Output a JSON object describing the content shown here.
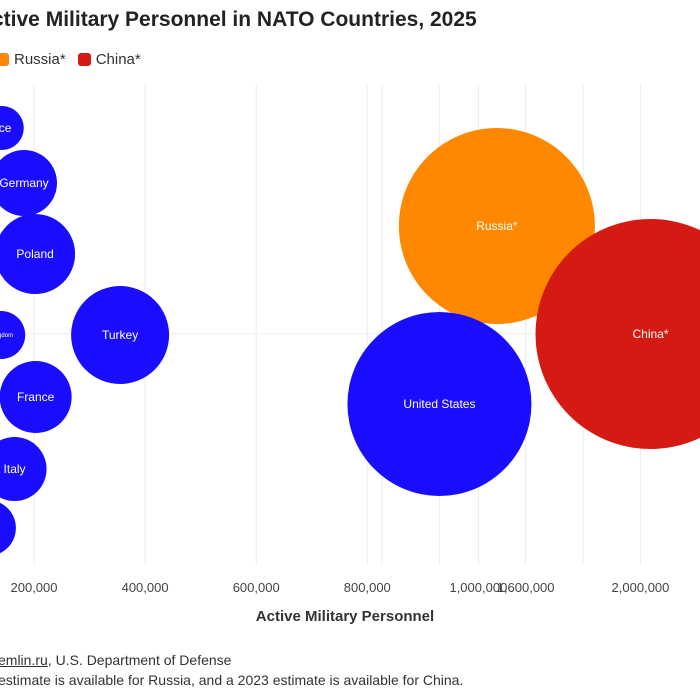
{
  "title": "ctive Military Personnel in NATO Countries, 2025",
  "legend": [
    {
      "label": "Russia*",
      "color": "#ff8800"
    },
    {
      "label": "China*",
      "color": "#d41a12"
    }
  ],
  "notes": {
    "source_prefix": "emlin.ru",
    "source_rest": ", U.S. Department of Defense",
    "footnote": "estimate is available for Russia, and a 2023 estimate is available for China."
  },
  "chart_data": {
    "type": "scatter",
    "title": "ctive Military Personnel in NATO Countries, 2025",
    "xlabel": "Active Military Personnel",
    "ylabel": "",
    "x_ticks": [
      "200,000",
      "400,000",
      "600,000",
      "800,000",
      "1,000,000",
      "1,600,000",
      "2,000,000"
    ],
    "grid": true,
    "colors": {
      "nato": "#1a0dff",
      "russia": "#ff8800",
      "china": "#d41a12"
    },
    "points": [
      {
        "label": "ece",
        "x": 142000,
        "group": "nato"
      },
      {
        "label": "Germany",
        "x": 182000,
        "group": "nato"
      },
      {
        "label": "",
        "x": 100000,
        "group": "nato"
      },
      {
        "label": "Poland",
        "x": 202000,
        "group": "nato"
      },
      {
        "label": "",
        "x": 60000,
        "group": "nato"
      },
      {
        "label": "Kingdom",
        "x": 141000,
        "group": "nato"
      },
      {
        "label": "Turkey",
        "x": 355000,
        "group": "nato"
      },
      {
        "label": "France",
        "x": 203000,
        "group": "nato"
      },
      {
        "label": "Italy",
        "x": 165000,
        "group": "nato"
      },
      {
        "label": "ain",
        "x": 117000,
        "group": "nato"
      },
      {
        "label": "Russia*",
        "x": 1500000,
        "group": "russia"
      },
      {
        "label": "United States",
        "x": 1300000,
        "group": "nato"
      },
      {
        "label": "China*",
        "x": 2035000,
        "group": "china"
      }
    ]
  }
}
